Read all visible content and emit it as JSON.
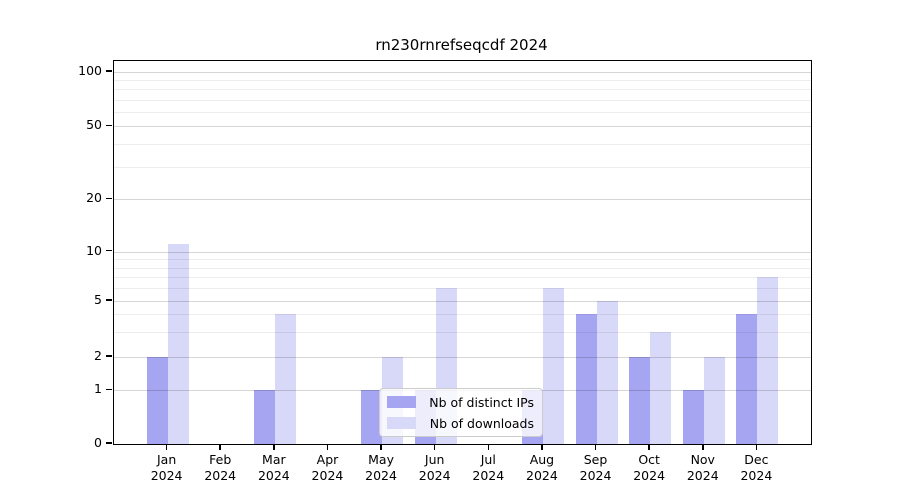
{
  "chart_data": {
    "type": "bar",
    "title": "rn230rnrefseqcdf 2024",
    "categories": [
      "Jan",
      "Feb",
      "Mar",
      "Apr",
      "May",
      "Jun",
      "Jul",
      "Aug",
      "Sep",
      "Oct",
      "Nov",
      "Dec"
    ],
    "x_sublabel": "2024",
    "series": [
      {
        "name": "Nb of distinct IPs",
        "values": [
          2,
          0,
          1,
          0,
          1,
          1,
          0,
          1,
          4,
          2,
          1,
          4
        ],
        "color": "#a5a5f1"
      },
      {
        "name": "Nb of downloads",
        "values": [
          11,
          0,
          4,
          0,
          2,
          6,
          0,
          6,
          5,
          3,
          2,
          7
        ],
        "color": "#d8d8f8"
      }
    ],
    "yticks": [
      0,
      1,
      2,
      5,
      10,
      20,
      50,
      100
    ],
    "minor_yticks": [
      3,
      4,
      6,
      7,
      8,
      9,
      30,
      40,
      60,
      70,
      80,
      90
    ],
    "ylim": [
      0,
      100
    ],
    "yscale": "log-like with linear 0-1 segment",
    "grid": true,
    "legend_position": "lower center"
  }
}
